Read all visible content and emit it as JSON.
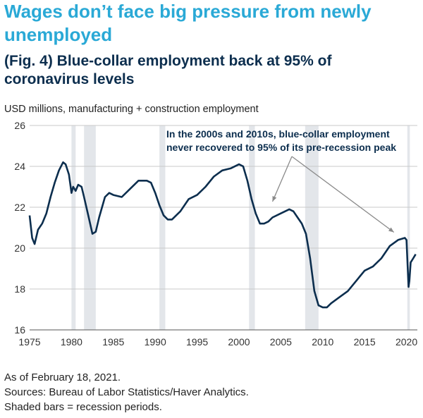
{
  "header": {
    "title_line1": "Wages don’t face big pressure from newly",
    "title_line2": "unemployed",
    "subtitle_line1": "(Fig. 4) Blue-collar employment back at 95% of",
    "subtitle_line2": "coronavirus levels"
  },
  "footer": {
    "line1": "As of February 18, 2021.",
    "line2": "Sources: Bureau of Labor Statistics/Haver Analytics.",
    "line3": "Shaded bars = recession periods."
  },
  "colors": {
    "title": "#2aa9d6",
    "subtitle": "#0c2e4e",
    "line": "#0c2e4e",
    "recession": "#e3e6ea",
    "grid": "#c9c9c9",
    "arrow": "#8a8a8a"
  },
  "chart_data": {
    "type": "line",
    "ylabel": "USD millions, manufacturing + construction employment",
    "xlim": [
      1975,
      2021.3
    ],
    "ylim": [
      16,
      26
    ],
    "x_ticks": [
      1975,
      1980,
      1985,
      1990,
      1995,
      2000,
      2005,
      2010,
      2015,
      2020
    ],
    "y_ticks": [
      16,
      18,
      20,
      22,
      24,
      26
    ],
    "grid": "horizontal",
    "recessions": [
      [
        1980.0,
        1980.5
      ],
      [
        1981.5,
        1982.9
      ],
      [
        1990.5,
        1991.2
      ],
      [
        2001.2,
        2001.9
      ],
      [
        2007.9,
        2009.5
      ],
      [
        2020.1,
        2020.4
      ]
    ],
    "annotation": {
      "line1": "In the 2000s and 2010s, blue-collar employment",
      "line2": "never recovered to 95% of its pre-recession peak",
      "points_to": [
        [
          2004.0,
          22.0
        ],
        [
          2018.5,
          20.5
        ]
      ]
    },
    "series": [
      {
        "x": [
          1975.0,
          1975.3,
          1975.6,
          1976.0,
          1976.5,
          1977.0,
          1977.5,
          1978.0,
          1978.5,
          1979.0,
          1979.3,
          1979.7,
          1980.0,
          1980.2,
          1980.5,
          1980.8,
          1981.2,
          1981.5,
          1982.0,
          1982.5,
          1982.9,
          1983.3,
          1984.0,
          1984.5,
          1985.0,
          1986.0,
          1987.0,
          1988.0,
          1989.0,
          1989.5,
          1990.0,
          1990.5,
          1991.0,
          1991.5,
          1992.0,
          1993.0,
          1994.0,
          1995.0,
          1996.0,
          1997.0,
          1998.0,
          1999.0,
          2000.0,
          2000.5,
          2001.0,
          2001.5,
          2002.0,
          2002.5,
          2003.0,
          2003.5,
          2004.0,
          2005.0,
          2006.0,
          2006.5,
          2007.0,
          2007.5,
          2008.0,
          2008.5,
          2009.0,
          2009.5,
          2010.0,
          2010.5,
          2011.0,
          2012.0,
          2013.0,
          2014.0,
          2015.0,
          2016.0,
          2017.0,
          2018.0,
          2019.0,
          2019.8,
          2020.0,
          2020.25,
          2020.35,
          2020.5,
          2020.8,
          2021.1
        ],
        "values": [
          21.6,
          20.5,
          20.2,
          20.9,
          21.2,
          21.7,
          22.5,
          23.2,
          23.8,
          24.2,
          24.1,
          23.6,
          22.7,
          23.0,
          22.8,
          23.1,
          23.0,
          22.5,
          21.6,
          20.7,
          20.8,
          21.5,
          22.5,
          22.7,
          22.6,
          22.5,
          22.9,
          23.3,
          23.3,
          23.2,
          22.7,
          22.1,
          21.6,
          21.4,
          21.4,
          21.8,
          22.4,
          22.6,
          23.0,
          23.5,
          23.8,
          23.9,
          24.1,
          24.0,
          23.3,
          22.4,
          21.7,
          21.2,
          21.2,
          21.3,
          21.5,
          21.7,
          21.9,
          21.8,
          21.5,
          21.2,
          20.7,
          19.5,
          17.9,
          17.2,
          17.1,
          17.1,
          17.3,
          17.6,
          17.9,
          18.4,
          18.9,
          19.1,
          19.5,
          20.1,
          20.4,
          20.5,
          20.4,
          18.1,
          18.4,
          19.3,
          19.5,
          19.7
        ]
      }
    ]
  }
}
